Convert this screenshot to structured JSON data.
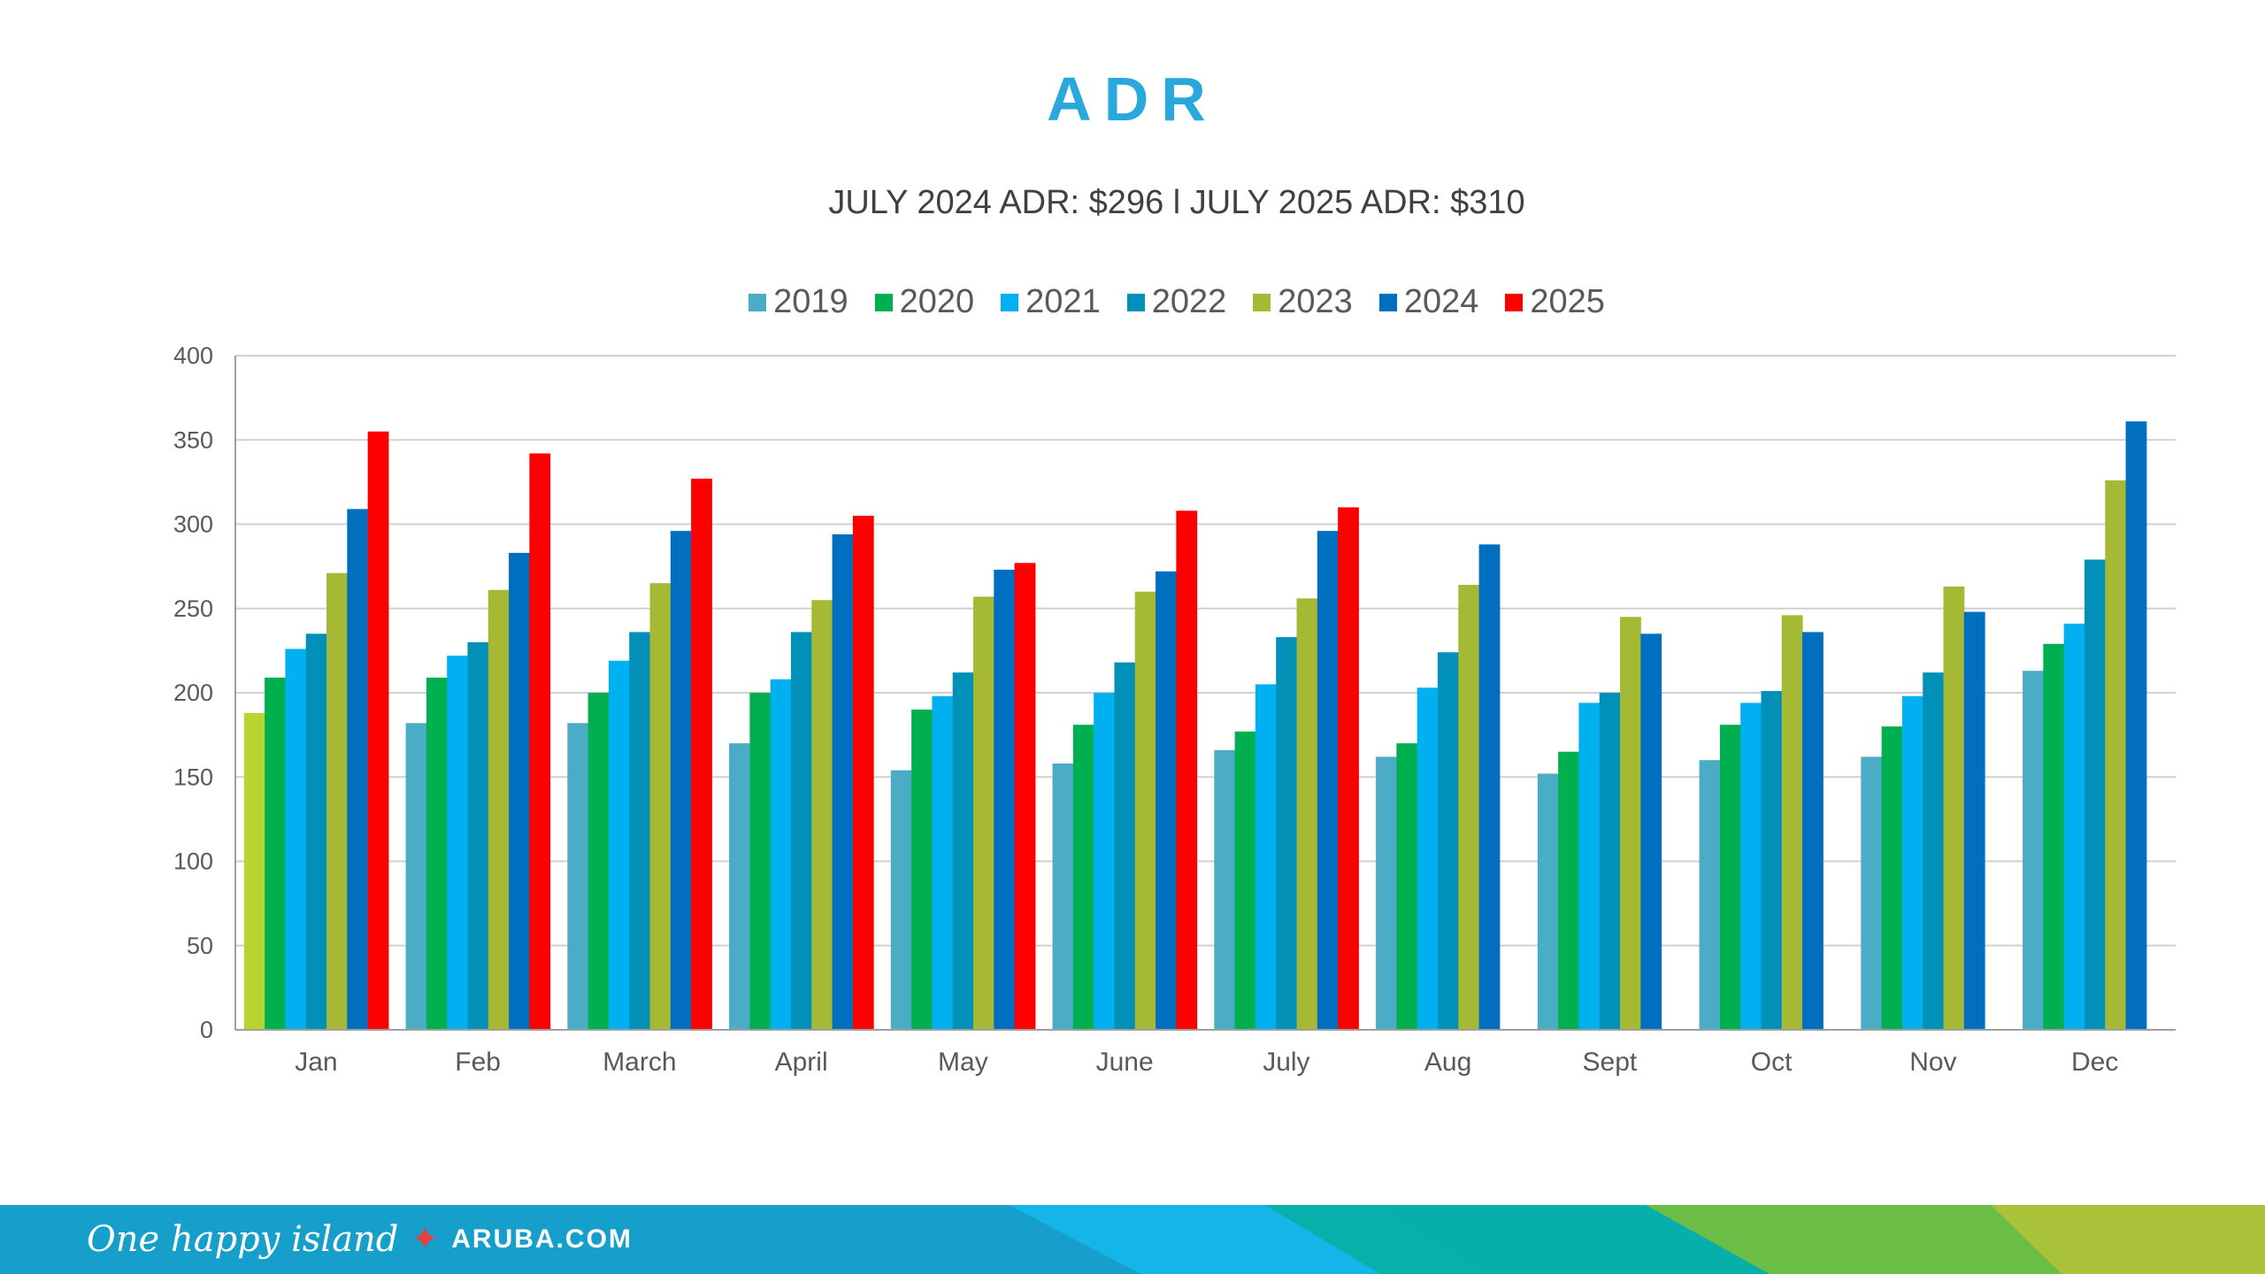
{
  "chart_data": {
    "type": "bar",
    "title": "ADR",
    "subtitle": "JULY 2024 ADR: $296 l JULY 2025 ADR: $310",
    "xlabel": "",
    "ylabel": "",
    "ylim": [
      0,
      400
    ],
    "yticks": [
      0,
      50,
      100,
      150,
      200,
      250,
      300,
      350,
      400
    ],
    "grid": true,
    "legend_position": "top",
    "categories": [
      "Jan",
      "Feb",
      "March",
      "April",
      "May",
      "June",
      "July",
      "Aug",
      "Sept",
      "Oct",
      "Nov",
      "Dec"
    ],
    "series": [
      {
        "name": "2019",
        "color": "#4bacc6",
        "values": [
          188,
          182,
          182,
          170,
          154,
          158,
          166,
          162,
          152,
          160,
          162,
          213
        ],
        "first_bar_color": "#b8d432"
      },
      {
        "name": "2020",
        "color": "#00b050",
        "values": [
          209,
          209,
          200,
          200,
          190,
          181,
          177,
          170,
          165,
          181,
          180,
          229
        ]
      },
      {
        "name": "2021",
        "color": "#00b0f0",
        "values": [
          226,
          222,
          219,
          208,
          198,
          200,
          205,
          203,
          194,
          194,
          198,
          241
        ]
      },
      {
        "name": "2022",
        "color": "#0090b8",
        "values": [
          235,
          230,
          236,
          236,
          212,
          218,
          233,
          224,
          200,
          201,
          212,
          279
        ]
      },
      {
        "name": "2023",
        "color": "#a5b934",
        "values": [
          271,
          261,
          265,
          255,
          257,
          260,
          256,
          264,
          245,
          246,
          263,
          326
        ]
      },
      {
        "name": "2024",
        "color": "#006fc0",
        "values": [
          309,
          283,
          296,
          294,
          273,
          272,
          296,
          288,
          235,
          236,
          248,
          361
        ]
      },
      {
        "name": "2025",
        "color": "#ff0000",
        "values": [
          355,
          342,
          327,
          305,
          277,
          308,
          310,
          null,
          null,
          null,
          null,
          null
        ]
      }
    ]
  },
  "footer": {
    "tagline": "One happy island",
    "url": "ARUBA.COM",
    "colors": [
      "#179fcc",
      "#14b5e8",
      "#06b0a8",
      "#6abd45",
      "#a9c23a"
    ]
  }
}
